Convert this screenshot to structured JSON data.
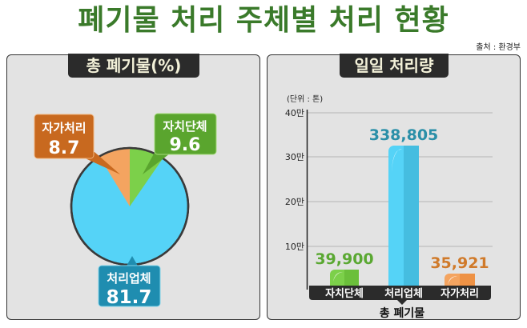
{
  "header": {
    "title": "폐기물 처리 주체별 처리 현황",
    "source": "출처 : 환경부"
  },
  "left_panel": {
    "title": "총 폐기물(%)"
  },
  "right_panel": {
    "title": "일일 처리량",
    "unit": "(단위 : 톤)",
    "xlabel": "총 폐기물"
  },
  "colors": {
    "title_green": "#3a7a2a",
    "blue": "#55d3f7",
    "blue_dark": "#1f8db0",
    "green": "#7cd04a",
    "green_dark": "#5aa52e",
    "orange": "#f4a460",
    "orange_dark": "#c8691f"
  },
  "chart_data": [
    {
      "type": "pie",
      "title": "총 폐기물(%)",
      "categories": [
        "처리업체",
        "자가처리",
        "자치단체"
      ],
      "values": [
        81.7,
        8.7,
        9.6
      ],
      "labels": [
        {
          "name": "자가처리",
          "value": "8.7"
        },
        {
          "name": "자치단체",
          "value": "9.6"
        },
        {
          "name": "처리업체",
          "value": "81.7"
        }
      ]
    },
    {
      "type": "bar",
      "title": "일일 처리량",
      "unit": "(단위 : 톤)",
      "xlabel": "총 폐기물",
      "categories": [
        "자치단체",
        "처리업체",
        "자가처리"
      ],
      "values": [
        39900,
        338805,
        35921
      ],
      "value_labels": [
        "39,900",
        "338,805",
        "35,921"
      ],
      "yticks": [
        "10만",
        "20만",
        "30만",
        "40만"
      ],
      "ylim": [
        0,
        400000
      ],
      "grid": true
    }
  ]
}
